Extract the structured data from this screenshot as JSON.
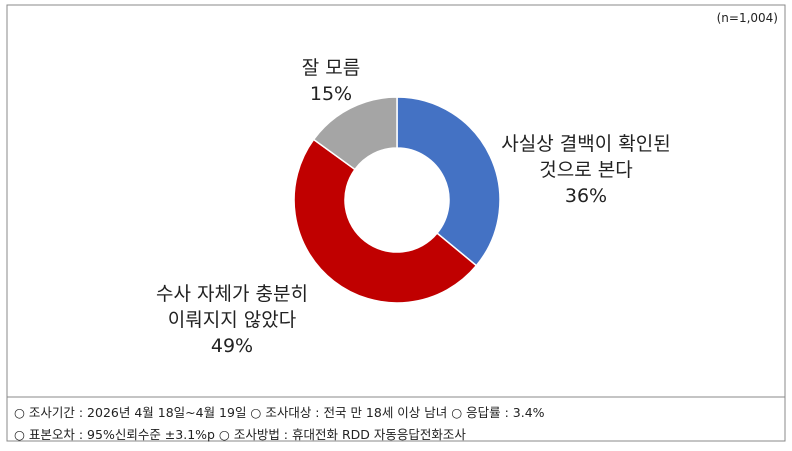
{
  "chart_data": {
    "type": "donut",
    "note": "(n=1,004)",
    "categories": [
      [
        "사실상 결백이 확인된",
        "것으로 본다"
      ],
      [
        "수사 자체가 충분히",
        "이뤄지지 않았다"
      ],
      [
        "잘 모름"
      ]
    ],
    "values": [
      36,
      49,
      15
    ],
    "value_labels": [
      "36%",
      "49%",
      "15%"
    ],
    "colors": [
      "#4472c4",
      "#c00000",
      "#a5a5a5"
    ],
    "footnotes": [
      "○ 조사기간 : 2026년 4월 18일~4월 19일 ○ 조사대상 : 전국 만 18세 이상 남녀 ○ 응답률 : 3.4%",
      "○ 표본오차 : 95%신뢰수준 ±3.1%p ○ 조사방법 : 휴대전화 RDD 자동응답전화조사"
    ]
  }
}
